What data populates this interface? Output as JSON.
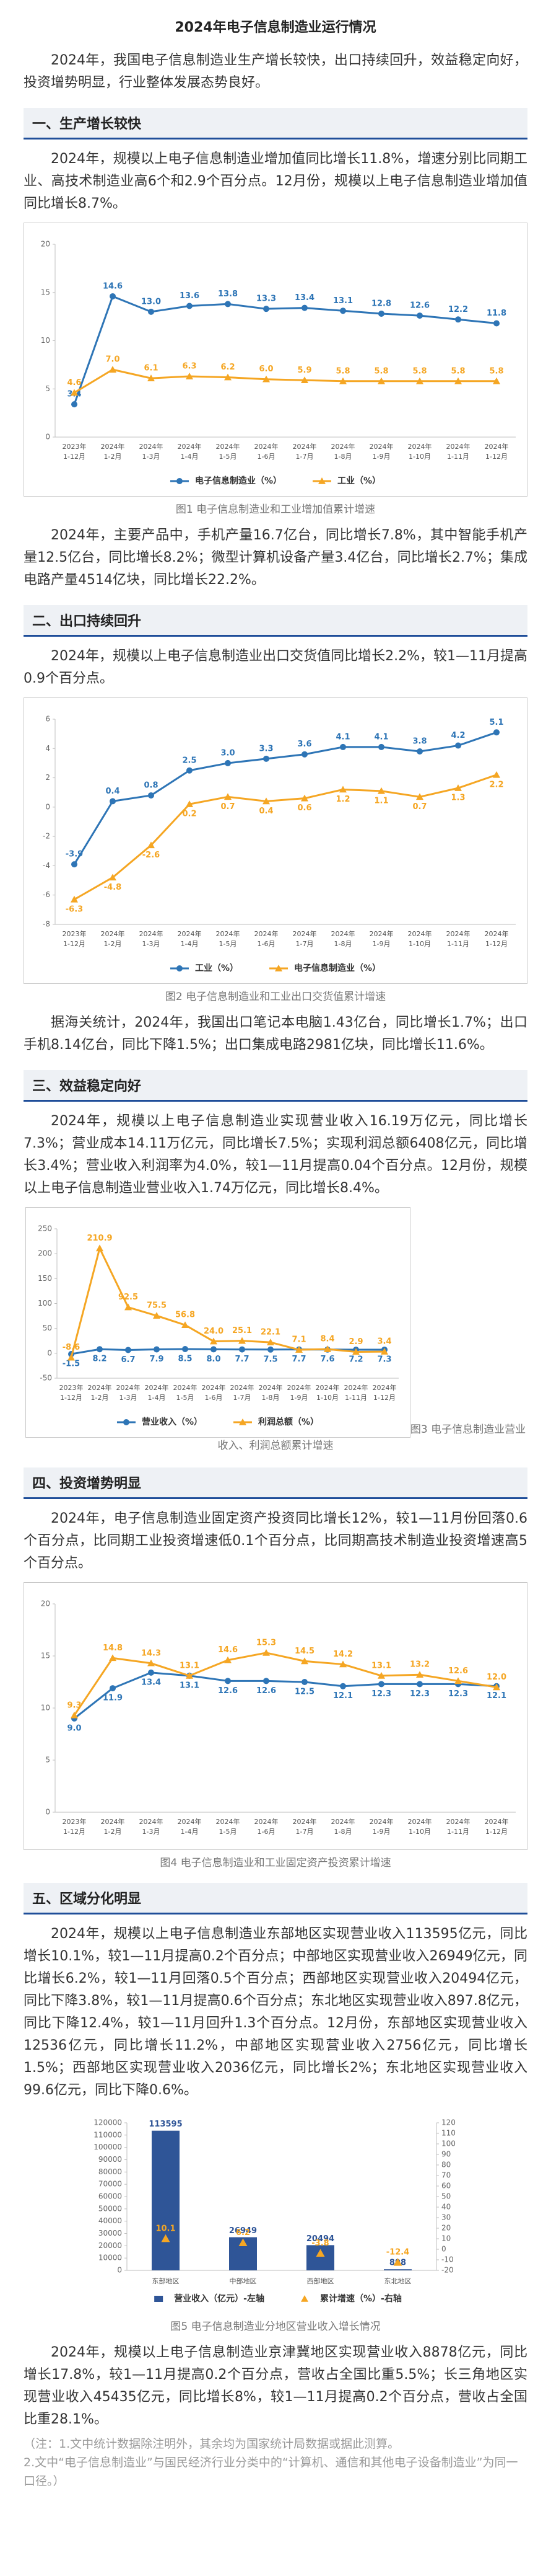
{
  "title": "2024年电子信息制造业运行情况",
  "intro": "2024年，我国电子信息制造业生产增长较快，出口持续回升，效益稳定向好，投资增势明显，行业整体发展态势良好。",
  "sections": [
    {
      "heading": "一、生产增长较快",
      "paragraphs": [
        "2024年，规模以上电子信息制造业增加值同比增长11.8%，增速分别比同期工业、高技术制造业高6个和2.9个百分点。12月份，规模以上电子信息制造业增加值同比增长8.7%。",
        "2024年，主要产品中，手机产量16.7亿台，同比增长7.8%，其中智能手机产量12.5亿台，同比增长8.2%；微型计算机设备产量3.4亿台，同比增长2.7%；集成电路产量4514亿块，同比增长22.2%。"
      ]
    },
    {
      "heading": "二、出口持续回升",
      "paragraphs": [
        "2024年，规模以上电子信息制造业出口交货值同比增长2.2%，较1—11月提高0.9个百分点。",
        "据海关统计，2024年，我国出口笔记本电脑1.43亿台，同比增长1.7%；出口手机8.14亿台，同比下降1.5%；出口集成电路2981亿块，同比增长11.6%。"
      ]
    },
    {
      "heading": "三、效益稳定向好",
      "paragraphs": [
        "2024年，规模以上电子信息制造业实现营业收入16.19万亿元，同比增长7.3%；营业成本14.11万亿元，同比增长7.5%；实现利润总额6408亿元，同比增长3.4%；营业收入利润率为4.0%，较1—11月提高0.04个百分点。12月份，规模以上电子信息制造业营业收入1.74万亿元，同比增长8.4%。"
      ]
    },
    {
      "heading": "四、投资增势明显",
      "paragraphs": [
        "2024年，电子信息制造业固定资产投资同比增长12%，较1—11月份回落0.6个百分点，比同期工业投资增速低0.1个百分点，比同期高技术制造业投资增速高5个百分点。"
      ]
    },
    {
      "heading": "五、区域分化明显",
      "paragraphs": [
        "2024年，规模以上电子信息制造业东部地区实现营业收入113595亿元，同比增长10.1%，较1—11月提高0.2个百分点；中部地区实现营业收入26949亿元，同比增长6.2%，较1—11月回落0.5个百分点；西部地区实现营业收入20494亿元，同比下降3.8%，较1—11月提高0.6个百分点；东北地区实现营业收入897.8亿元，同比下降12.4%，较1—11月回升1.3个百分点。12月份，东部地区实现营业收入12536亿元，同比增长11.2%，中部地区实现营业收入2756亿元，同比增长1.5%；西部地区实现营业收入2036亿元，同比增长2%；东北地区实现营业收入99.6亿元，同比下降0.6%。",
        "2024年，规模以上电子信息制造业京津冀地区实现营业收入8878亿元，同比增长17.8%，较1—11月提高0.2个百分点，营收占全国比重5.5%；长三角地区实现营业收入45435亿元，同比增长8%，较1—11月提高0.2个百分点，营收占全国比重28.1%。"
      ]
    }
  ],
  "notes": [
    "（注：1.文中统计数据除注明外，其余均为国家统计局数据或据此测算。",
    "2.文中“电子信息制造业”与国民经济行业分类中的“计算机、通信和其他电子设备制造业”为同一口径。）"
  ],
  "chart_data": [
    {
      "type": "line",
      "caption": "图1 电子信息制造业和工业增加值累计增速",
      "categories": [
        [
          "2023年",
          "1-12月"
        ],
        [
          "2024年",
          "1-2月"
        ],
        [
          "2024年",
          "1-3月"
        ],
        [
          "2024年",
          "1-4月"
        ],
        [
          "2024年",
          "1-5月"
        ],
        [
          "2024年",
          "1-6月"
        ],
        [
          "2024年",
          "1-7月"
        ],
        [
          "2024年",
          "1-8月"
        ],
        [
          "2024年",
          "1-9月"
        ],
        [
          "2024年",
          "1-10月"
        ],
        [
          "2024年",
          "1-11月"
        ],
        [
          "2024年",
          "1-12月"
        ]
      ],
      "series": [
        {
          "name": "电子信息制造业（%）",
          "color": "#2e75b6",
          "marker": "circle",
          "values": [
            3.4,
            14.6,
            13.0,
            13.6,
            13.8,
            13.3,
            13.4,
            13.1,
            12.8,
            12.6,
            12.2,
            11.8
          ],
          "value_labels": [
            "3.4",
            "14.6",
            "13.0",
            "13.6",
            "13.8",
            "13.3",
            "13.4",
            "13.1",
            "12.8",
            "12.6",
            "12.2",
            "11.8"
          ]
        },
        {
          "name": "工业（%）",
          "color": "#f5a623",
          "marker": "triangle",
          "values": [
            4.6,
            7.0,
            6.1,
            6.3,
            6.2,
            6.0,
            5.9,
            5.8,
            5.8,
            5.8,
            5.8,
            5.8
          ],
          "value_labels": [
            "4.6",
            "7.0",
            "6.1",
            "6.3",
            "6.2",
            "6.0",
            "5.9",
            "5.8",
            "5.8",
            "5.8",
            "5.8",
            "5.8"
          ]
        }
      ],
      "ylim": [
        0,
        20
      ],
      "yticks": [
        0,
        5,
        10,
        15,
        20
      ],
      "grid": false
    },
    {
      "type": "line",
      "caption": "图2 电子信息制造业和工业出口交货值累计增速",
      "categories": [
        [
          "2023年",
          "1-12月"
        ],
        [
          "2024年",
          "1-2月"
        ],
        [
          "2024年",
          "1-3月"
        ],
        [
          "2024年",
          "1-4月"
        ],
        [
          "2024年",
          "1-5月"
        ],
        [
          "2024年",
          "1-6月"
        ],
        [
          "2024年",
          "1-7月"
        ],
        [
          "2024年",
          "1-8月"
        ],
        [
          "2024年",
          "1-9月"
        ],
        [
          "2024年",
          "1-10月"
        ],
        [
          "2024年",
          "1-11月"
        ],
        [
          "2024年",
          "1-12月"
        ]
      ],
      "series": [
        {
          "name": "工业（%）",
          "color": "#2e75b6",
          "marker": "circle",
          "values": [
            -3.9,
            0.4,
            0.8,
            2.5,
            3.0,
            3.3,
            3.6,
            4.1,
            4.1,
            3.8,
            4.2,
            5.1
          ],
          "value_labels": [
            "-3.9",
            "0.4",
            "0.8",
            "2.5",
            "3.0",
            "3.3",
            "3.6",
            "4.1",
            "4.1",
            "3.8",
            "4.2",
            "5.1"
          ]
        },
        {
          "name": "电子信息制造业（%）",
          "color": "#f5a623",
          "marker": "triangle",
          "values": [
            -6.3,
            -4.8,
            -2.6,
            0.2,
            0.7,
            0.4,
            0.6,
            1.2,
            1.1,
            0.7,
            1.3,
            2.2
          ],
          "value_labels": [
            "-6.3",
            "-4.8",
            "-2.6",
            "0.2",
            "0.7",
            "0.4",
            "0.6",
            "1.2",
            "1.1",
            "0.7",
            "1.3",
            "2.2"
          ]
        }
      ],
      "ylim": [
        -8,
        6
      ],
      "yticks": [
        -8,
        -6,
        -4,
        -2,
        0,
        2,
        4,
        6
      ],
      "grid": false
    },
    {
      "type": "line",
      "caption": "图3 电子信息制造业营业收入、利润总额累计增速",
      "categories": [
        [
          "2023年",
          "1-12月"
        ],
        [
          "2024年",
          "1-2月"
        ],
        [
          "2024年",
          "1-3月"
        ],
        [
          "2024年",
          "1-4月"
        ],
        [
          "2024年",
          "1-5月"
        ],
        [
          "2024年",
          "1-6月"
        ],
        [
          "2024年",
          "1-7月"
        ],
        [
          "2024年",
          "1-8月"
        ],
        [
          "2024年",
          "1-9月"
        ],
        [
          "2024年",
          "1-10月"
        ],
        [
          "2024年",
          "1-11月"
        ],
        [
          "2024年",
          "1-12月"
        ]
      ],
      "series": [
        {
          "name": "营业收入（%）",
          "color": "#2e75b6",
          "marker": "circle",
          "values": [
            -1.5,
            8.2,
            6.7,
            7.9,
            8.5,
            8.0,
            7.7,
            7.5,
            7.7,
            7.6,
            7.2,
            7.3
          ],
          "value_labels": [
            "-1.5",
            "8.2",
            "6.7",
            "7.9",
            "8.5",
            "8.0",
            "7.7",
            "7.5",
            "7.7",
            "7.6",
            "7.2",
            "7.3"
          ]
        },
        {
          "name": "利润总额（%）",
          "color": "#f5a623",
          "marker": "triangle",
          "values": [
            -8.6,
            210.9,
            92.5,
            75.5,
            56.8,
            24.0,
            25.1,
            22.1,
            7.1,
            8.4,
            2.9,
            3.4
          ],
          "value_labels": [
            "-8.6",
            "210.9",
            "92.5",
            "75.5",
            "56.8",
            "24.0",
            "25.1",
            "22.1",
            "7.1",
            "8.4",
            "2.9",
            "3.4"
          ]
        }
      ],
      "ylim": [
        -50,
        250
      ],
      "yticks": [
        -50,
        0,
        50,
        100,
        150,
        200,
        250
      ],
      "grid": false
    },
    {
      "type": "line",
      "caption": "图4 电子信息制造业和工业固定资产投资累计增速",
      "categories": [
        [
          "2023年",
          "1-12月"
        ],
        [
          "2024年",
          "1-2月"
        ],
        [
          "2024年",
          "1-3月"
        ],
        [
          "2024年",
          "1-4月"
        ],
        [
          "2024年",
          "1-5月"
        ],
        [
          "2024年",
          "1-6月"
        ],
        [
          "2024年",
          "1-7月"
        ],
        [
          "2024年",
          "1-8月"
        ],
        [
          "2024年",
          "1-9月"
        ],
        [
          "2024年",
          "1-10月"
        ],
        [
          "2024年",
          "1-11月"
        ],
        [
          "2024年",
          "1-12月"
        ]
      ],
      "series": [
        {
          "color": "#2e75b6",
          "marker": "circle",
          "values": [
            9.0,
            11.9,
            13.4,
            13.1,
            12.6,
            12.6,
            12.5,
            12.1,
            12.3,
            12.3,
            12.3,
            12.1
          ],
          "value_labels": [
            "9.0",
            "11.9",
            "13.4",
            "13.1",
            "12.6",
            "12.6",
            "12.5",
            "12.1",
            "12.3",
            "12.3",
            "12.3",
            "12.1"
          ]
        },
        {
          "color": "#f5a623",
          "marker": "triangle",
          "values": [
            9.3,
            14.8,
            14.3,
            13.1,
            14.6,
            15.3,
            14.5,
            14.2,
            13.1,
            13.2,
            12.6,
            12.0
          ],
          "value_labels": [
            "9.3",
            "14.8",
            "14.3",
            "13.1",
            "14.6",
            "15.3",
            "14.5",
            "14.2",
            "13.1",
            "13.2",
            "12.6",
            "12.0"
          ]
        }
      ],
      "ylim": [
        0,
        20
      ],
      "yticks": [
        0,
        5,
        10,
        15,
        20
      ],
      "grid": false
    },
    {
      "type": "bar",
      "caption": "图5 电子信息制造业分地区营业收入增长情况",
      "categories": [
        "东部地区",
        "中部地区",
        "西部地区",
        "东北地区"
      ],
      "series": [
        {
          "name": "营业收入（亿元）-左轴",
          "color": "#2f5597",
          "marker": "square",
          "values": [
            113595,
            26949,
            20494,
            898
          ]
        },
        {
          "name": "累计增速（%）-右轴",
          "color": "#f5a623",
          "marker": "triangle",
          "axis": "y2",
          "values": [
            10.1,
            6.2,
            -3.8,
            -12.4
          ]
        }
      ],
      "ylim": [
        0,
        120000
      ],
      "yticks": [
        0,
        10000,
        20000,
        30000,
        40000,
        50000,
        60000,
        70000,
        80000,
        90000,
        100000,
        110000,
        120000
      ],
      "y2lim": [
        -20,
        120
      ],
      "y2ticks": [
        -20,
        -10,
        0,
        10,
        20,
        30,
        40,
        50,
        60,
        70,
        80,
        90,
        100,
        110,
        120
      ],
      "grid": false
    }
  ]
}
